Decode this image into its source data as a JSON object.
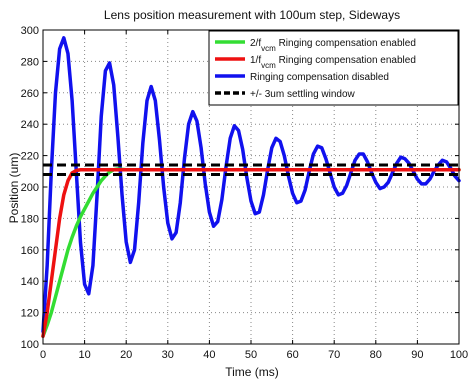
{
  "chart_data": {
    "type": "line",
    "title": "Lens position measurement with 100um step, Sideways",
    "xlabel": "Time (ms)",
    "ylabel": "Position (um)",
    "xlim": [
      0,
      100
    ],
    "ylim": [
      100,
      300
    ],
    "xticks": [
      0,
      10,
      20,
      30,
      40,
      50,
      60,
      70,
      80,
      90,
      100
    ],
    "yticks": [
      100,
      120,
      140,
      160,
      180,
      200,
      220,
      240,
      260,
      280,
      300
    ],
    "grid": true,
    "legend_position": "top-right",
    "series": [
      {
        "name": "2/f",
        "name_sub": "vcm",
        "name_suffix": " Ringing compensation enabled",
        "color": "#33dd33",
        "x": [
          0,
          1,
          2,
          3,
          4,
          5,
          6,
          7,
          8,
          9,
          10,
          11,
          12,
          13,
          14,
          15,
          16,
          17,
          18,
          20,
          25,
          30,
          40,
          50,
          60,
          70,
          80,
          90,
          100
        ],
        "y": [
          105,
          112,
          120,
          130,
          140,
          150,
          160,
          168,
          175,
          181,
          186,
          191,
          196,
          200,
          204,
          207,
          209.5,
          211,
          211.5,
          211,
          211,
          211,
          211,
          211,
          211,
          211,
          211,
          211,
          211
        ]
      },
      {
        "name": "1/f",
        "name_sub": "vcm",
        "name_suffix": " Ringing compensation enabled",
        "color": "#ee1111",
        "x": [
          0,
          1,
          2,
          3,
          4,
          5,
          6,
          7,
          8,
          9,
          10,
          12,
          15,
          20,
          30,
          40,
          50,
          60,
          70,
          80,
          90,
          100
        ],
        "y": [
          105,
          120,
          140,
          160,
          180,
          195,
          204,
          209,
          210.5,
          211,
          211,
          211,
          211,
          211,
          211,
          211,
          211,
          211,
          211,
          211,
          211,
          211
        ]
      },
      {
        "name": "Ringing compensation disabled",
        "color": "#1111ee",
        "x": [
          0,
          1,
          2,
          3,
          4,
          5,
          6,
          7,
          8,
          9,
          10,
          11,
          12,
          13,
          14,
          15,
          16,
          17,
          18,
          19,
          20,
          21,
          22,
          23,
          24,
          25,
          26,
          27,
          28,
          29,
          30,
          31,
          32,
          33,
          34,
          35,
          36,
          37,
          38,
          39,
          40,
          41,
          42,
          43,
          44,
          45,
          46,
          47,
          48,
          49,
          50,
          51,
          52,
          53,
          54,
          55,
          56,
          57,
          58,
          59,
          60,
          61,
          62,
          63,
          64,
          65,
          66,
          67,
          68,
          69,
          70,
          71,
          72,
          73,
          74,
          75,
          76,
          77,
          78,
          79,
          80,
          81,
          82,
          83,
          84,
          85,
          86,
          87,
          88,
          89,
          90,
          91,
          92,
          93,
          94,
          95,
          96,
          97,
          98,
          99,
          100
        ],
        "y": [
          108,
          150,
          210,
          260,
          288,
          295,
          285,
          255,
          210,
          165,
          138,
          132,
          150,
          195,
          245,
          274,
          279,
          265,
          232,
          195,
          165,
          152,
          160,
          190,
          228,
          255,
          264,
          255,
          230,
          200,
          177,
          167,
          171,
          190,
          218,
          240,
          248,
          242,
          225,
          202,
          184,
          175,
          178,
          192,
          213,
          231,
          239,
          236,
          224,
          206,
          191,
          183,
          184,
          195,
          211,
          225,
          231,
          229,
          220,
          207,
          196,
          190,
          191,
          198,
          210,
          221,
          226,
          225,
          218,
          209,
          200,
          195,
          196,
          201,
          209,
          217,
          221,
          221,
          216,
          209,
          203,
          199,
          200,
          203,
          209,
          215,
          219,
          218,
          215,
          210,
          205,
          202,
          202,
          205,
          210,
          214,
          217,
          216,
          212,
          207,
          204
        ]
      },
      {
        "name": "+/- 3um settling window",
        "color": "#000000",
        "dashed": true,
        "bands": [
          208,
          214
        ],
        "x": [
          0,
          100
        ]
      }
    ]
  }
}
